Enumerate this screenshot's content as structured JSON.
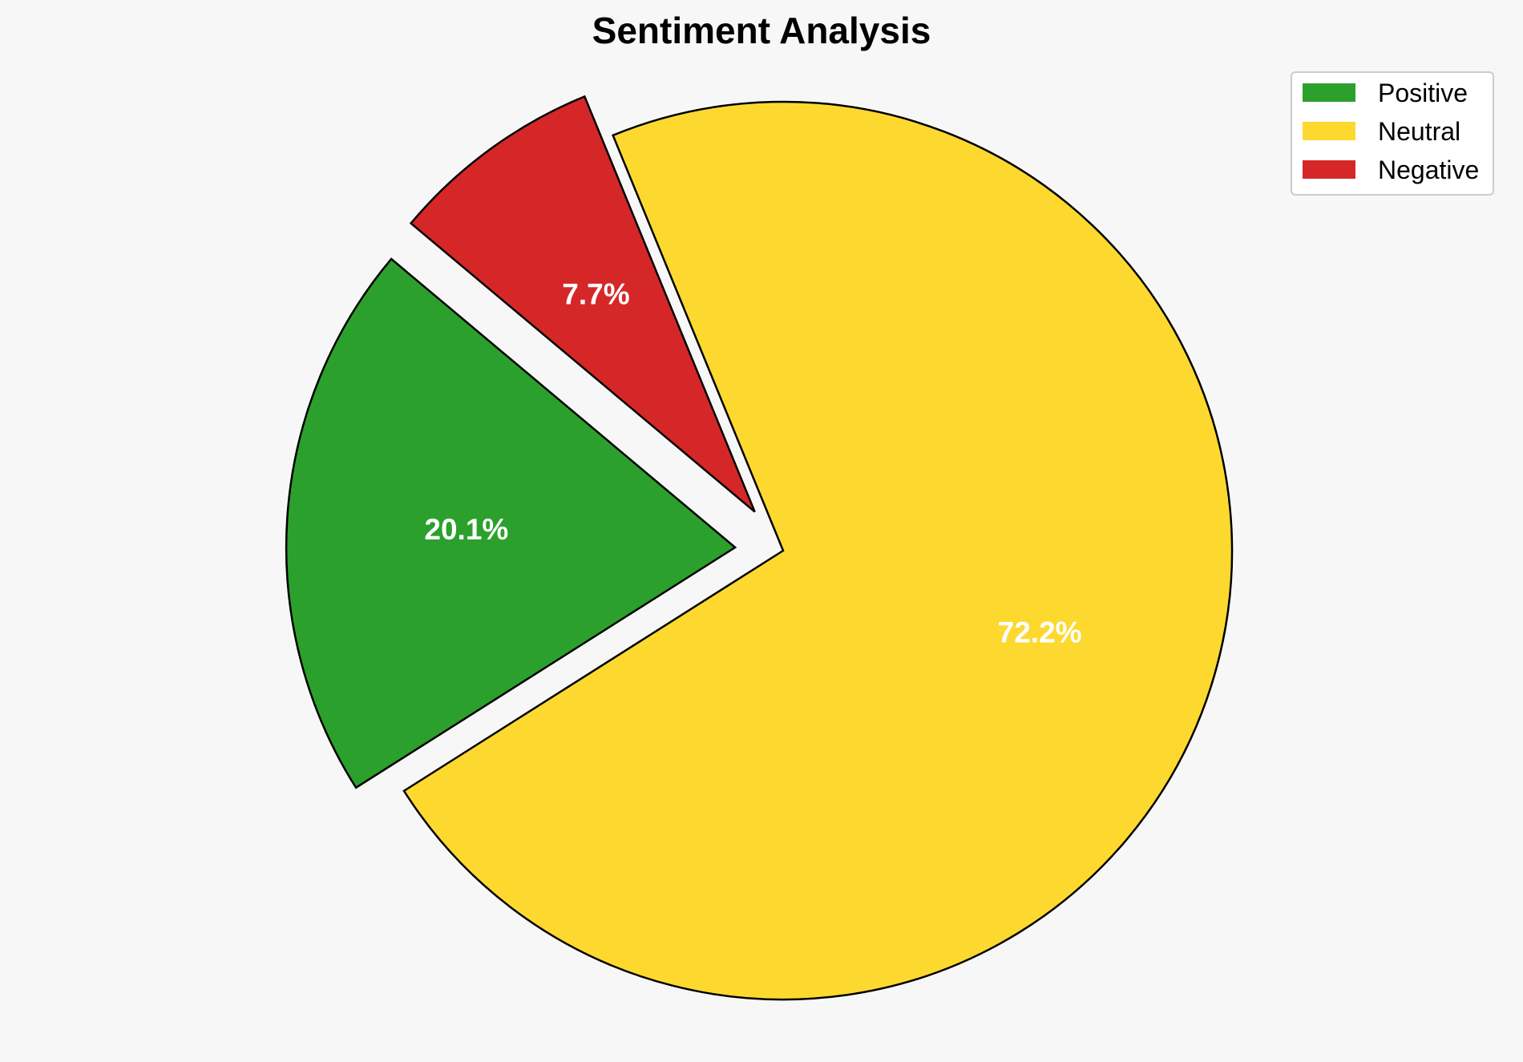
{
  "chart_data": {
    "type": "pie",
    "title": "Sentiment Analysis",
    "categories": [
      "Positive",
      "Neutral",
      "Negative"
    ],
    "values": [
      20.1,
      72.2,
      7.7
    ],
    "labels": [
      "20.1%",
      "72.2%",
      "7.7%"
    ],
    "colors": [
      "#2ca02c",
      "#fdd930",
      "#d62728"
    ],
    "exploded": [
      true,
      false,
      true
    ],
    "legend_position": "top-right",
    "legend": [
      "Positive",
      "Neutral",
      "Negative"
    ]
  }
}
